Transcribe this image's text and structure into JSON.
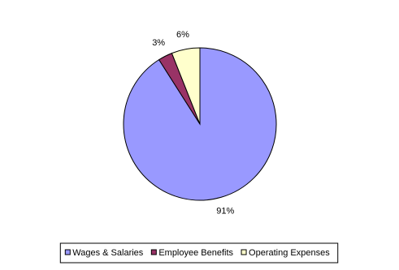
{
  "chart_data": {
    "type": "pie",
    "categories": [
      "Wages & Salaries",
      "Employee Benefits",
      "Operating Expenses"
    ],
    "values": [
      91,
      3,
      6
    ],
    "value_labels": [
      "91%",
      "3%",
      "6%"
    ],
    "colors": [
      "#9999ff",
      "#993366",
      "#ffffcc"
    ],
    "legend": "bottom"
  }
}
